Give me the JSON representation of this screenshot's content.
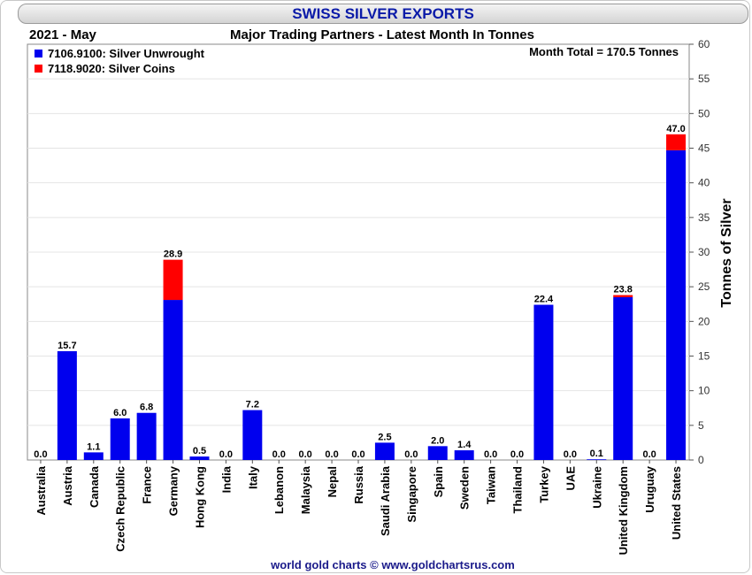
{
  "header": {
    "title": "SWISS SILVER EXPORTS",
    "period": "2021 - May",
    "subtitle": "Major Trading Partners - Latest Month In Tonnes"
  },
  "footer": "world gold charts © www.goldchartsrus.com",
  "colors": {
    "unwrought": "#0000ee",
    "coins": "#ff0000",
    "title": "#0a1aa8"
  },
  "chart_data": {
    "type": "bar",
    "stacked": true,
    "title": "SWISS SILVER EXPORTS",
    "subtitle": "Major Trading Partners - Latest Month In Tonnes",
    "annotation": "Month Total = 170.5 Tonnes",
    "ylabel": "Tonnes of Silver",
    "ylim": [
      0,
      60
    ],
    "yticks": [
      0,
      5,
      10,
      15,
      20,
      25,
      30,
      35,
      40,
      45,
      50,
      55,
      60
    ],
    "y_axis_side": "right",
    "legend_position": "top-left",
    "categories": [
      "Australia",
      "Austria",
      "Canada",
      "Czech Republic",
      "France",
      "Germany",
      "Hong Kong",
      "India",
      "Italy",
      "Lebanon",
      "Malaysia",
      "Nepal",
      "Russia",
      "Saudi Arabia",
      "Singapore",
      "Spain",
      "Sweden",
      "Taiwan",
      "Thailand",
      "Turkey",
      "UAE",
      "Ukraine",
      "United Kingdom",
      "Uruguay",
      "United States"
    ],
    "series": [
      {
        "name": "7106.9100: Silver Unwrought",
        "color": "#0000ee",
        "values": [
          0,
          15.7,
          1.1,
          6.0,
          6.8,
          23.1,
          0.5,
          0,
          7.2,
          0,
          0,
          0,
          0,
          2.5,
          0,
          2.0,
          1.4,
          0,
          0,
          22.4,
          0,
          0.1,
          23.5,
          0,
          44.7
        ]
      },
      {
        "name": "7118.9020: Silver Coins",
        "color": "#ff0000",
        "values": [
          0,
          0,
          0,
          0,
          0,
          5.8,
          0,
          0,
          0,
          0,
          0,
          0,
          0,
          0,
          0,
          0,
          0,
          0,
          0,
          0,
          0,
          0,
          0.3,
          0,
          2.3
        ]
      }
    ],
    "totals_labels": [
      "0.0",
      "15.7",
      "1.1",
      "6.0",
      "6.8",
      "28.9",
      "0.5",
      "0.0",
      "7.2",
      "0.0",
      "0.0",
      "0.0",
      "0.0",
      "2.5",
      "0.0",
      "2.0",
      "1.4",
      "0.0",
      "0.0",
      "22.4",
      "0.0",
      "0.1",
      "23.8",
      "0.0",
      "47.0"
    ]
  }
}
